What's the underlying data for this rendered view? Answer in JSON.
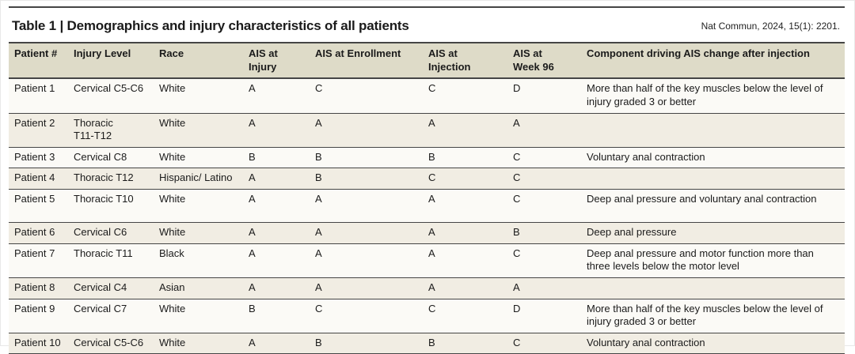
{
  "title": "Table 1 | Demographics and injury characteristics of all patients",
  "citation": "Nat Commun, 2024, 15(1): 2201.",
  "colors": {
    "header_bg": "#dedbc8",
    "row_odd_bg": "#fbfaf6",
    "row_even_bg": "#f1ede3",
    "rule_dark": "#454545",
    "text_color": "#1b1b1b",
    "page_bg": "#ffffff"
  },
  "table": {
    "columns": [
      "Patient #",
      "Injury Level",
      "Race",
      "AIS at\nInjury",
      "AIS at Enrollment",
      "AIS at\nInjection",
      "AIS at\nWeek 96",
      "Component driving AIS change after injection"
    ],
    "rows": [
      [
        "Patient 1",
        "Cervical C5-C6",
        "White",
        "A",
        "C",
        "C",
        "D",
        "More than half of the key muscles below the level of injury graded 3 or better"
      ],
      [
        "Patient 2",
        "Thoracic\nT11-T12",
        "White",
        "A",
        "A",
        "A",
        "A",
        ""
      ],
      [
        "Patient 3",
        "Cervical C8",
        "White",
        "B",
        "B",
        "B",
        "C",
        "Voluntary anal contraction"
      ],
      [
        "Patient 4",
        "Thoracic T12",
        "Hispanic/ Latino",
        "A",
        "B",
        "C",
        "C",
        ""
      ],
      [
        "Patient 5",
        "Thoracic T10",
        "White",
        "A",
        "A",
        "A",
        "C",
        "Deep anal pressure and voluntary anal contraction"
      ],
      [
        "Patient 6",
        "Cervical C6",
        "White",
        "A",
        "A",
        "A",
        "B",
        "Deep anal pressure"
      ],
      [
        "Patient 7",
        "Thoracic T11",
        "Black",
        "A",
        "A",
        "A",
        "C",
        "Deep anal pressure and motor function more than three levels below the motor level"
      ],
      [
        "Patient 8",
        "Cervical C4",
        "Asian",
        "A",
        "A",
        "A",
        "A",
        ""
      ],
      [
        "Patient 9",
        "Cervical C7",
        "White",
        "B",
        "C",
        "C",
        "D",
        "More than half of the key muscles below the level of injury graded 3 or better"
      ],
      [
        "Patient 10",
        "Cervical C5-C6",
        "White",
        "A",
        "B",
        "B",
        "C",
        "Voluntary anal contraction"
      ]
    ]
  }
}
